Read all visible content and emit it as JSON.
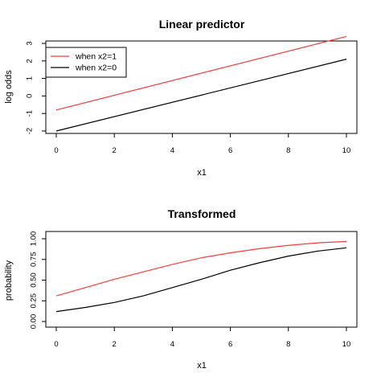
{
  "chart_data": [
    {
      "type": "line",
      "title": "Linear predictor",
      "xlabel": "x1",
      "ylabel": "log odds",
      "xlim": [
        0,
        10
      ],
      "ylim": [
        -2,
        3.5
      ],
      "xticks": [
        0,
        2,
        4,
        6,
        8,
        10
      ],
      "yticks": [
        -2,
        -1,
        0,
        1,
        2,
        3
      ],
      "legend_position": "top-left",
      "series": [
        {
          "name": "when x2=1",
          "color": "#ff3b3b",
          "x": [
            0,
            10
          ],
          "y": [
            -0.8,
            3.4
          ]
        },
        {
          "name": "when x2=0",
          "color": "#000000",
          "x": [
            0,
            10
          ],
          "y": [
            -2.0,
            2.1
          ]
        }
      ]
    },
    {
      "type": "line",
      "title": "Transformed",
      "xlabel": "x1",
      "ylabel": "probability",
      "xlim": [
        0,
        10
      ],
      "ylim": [
        0,
        1
      ],
      "xticks": [
        0,
        2,
        4,
        6,
        8,
        10
      ],
      "yticks": [
        "0.00",
        "0.25",
        "0.50",
        "0.75",
        "1.00"
      ],
      "series": [
        {
          "color": "#ff3b3b",
          "x": [
            0,
            1,
            2,
            3,
            4,
            5,
            6,
            7,
            8,
            9,
            10
          ],
          "y": [
            0.31,
            0.41,
            0.51,
            0.6,
            0.69,
            0.77,
            0.83,
            0.88,
            0.92,
            0.95,
            0.967
          ]
        },
        {
          "color": "#000000",
          "x": [
            0,
            1,
            2,
            3,
            4,
            5,
            6,
            7,
            8,
            9,
            10
          ],
          "y": [
            0.12,
            0.17,
            0.23,
            0.31,
            0.41,
            0.51,
            0.62,
            0.71,
            0.79,
            0.85,
            0.89
          ]
        }
      ]
    }
  ]
}
